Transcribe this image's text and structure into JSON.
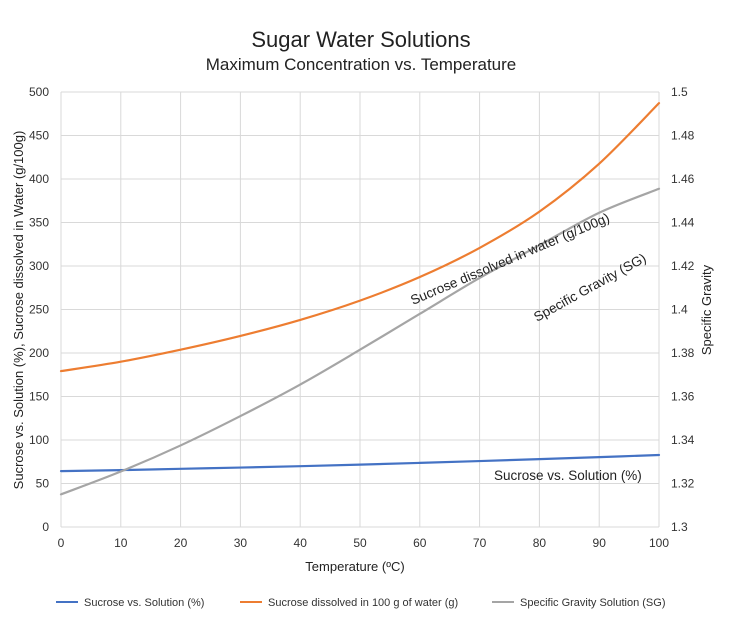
{
  "chart_data": {
    "type": "line",
    "title": "Sugar Water Solutions",
    "subtitle": "Maximum Concentration vs. Temperature",
    "xlabel": "Temperature (ºC)",
    "ylabel": "Sucrose vs. Solution (%), Sucrose dissolved in Water (g/100g)",
    "y2label": "Specific Gravity",
    "xlim": [
      0,
      100
    ],
    "ylim": [
      0,
      500
    ],
    "y2lim": [
      1.3,
      1.5
    ],
    "x_ticks": [
      "0",
      "10",
      "20",
      "30",
      "40",
      "50",
      "60",
      "70",
      "80",
      "90",
      "100"
    ],
    "y_ticks": [
      "0",
      "50",
      "100",
      "150",
      "200",
      "250",
      "300",
      "350",
      "400",
      "450",
      "500"
    ],
    "y2_ticks": [
      "1.3",
      "1.32",
      "1.34",
      "1.36",
      "1.38",
      "1.4",
      "1.42",
      "1.44",
      "1.46",
      "1.48",
      "1.5"
    ],
    "grid": true,
    "legend_position": "bottom",
    "x": [
      0,
      10,
      20,
      30,
      40,
      50,
      60,
      70,
      80,
      90,
      100
    ],
    "series": [
      {
        "name": "Sucrose vs. Solution (%)",
        "axis": "left",
        "color": "#4472C4",
        "values": [
          64.2,
          65.4,
          66.9,
          68.3,
          69.9,
          71.7,
          73.7,
          75.8,
          78.0,
          80.3,
          82.8
        ]
      },
      {
        "name": "Sucrose dissolved in 100 g of water (g)",
        "axis": "left",
        "color": "#ED7D31",
        "values": [
          179.2,
          190.0,
          203.8,
          219.6,
          238.0,
          260.2,
          287.3,
          320.8,
          362.5,
          417.6,
          487.2
        ]
      },
      {
        "name": "Specific Gravity Solution (SG)",
        "axis": "right",
        "color": "#A5A5A5",
        "values": [
          1.315,
          1.3255,
          1.3375,
          1.351,
          1.3655,
          1.3815,
          1.398,
          1.4145,
          1.4295,
          1.4445,
          1.4555
        ]
      }
    ],
    "annotations": [
      {
        "text": "Sucrose dissolved in water (g/100g)",
        "series": "Sucrose dissolved in 100 g of water (g)"
      },
      {
        "text": "Specific Gravity (SG)",
        "series": "Specific Gravity Solution (SG)"
      },
      {
        "text": "Sucrose vs. Solution (%)",
        "series": "Sucrose vs. Solution (%)"
      }
    ]
  }
}
